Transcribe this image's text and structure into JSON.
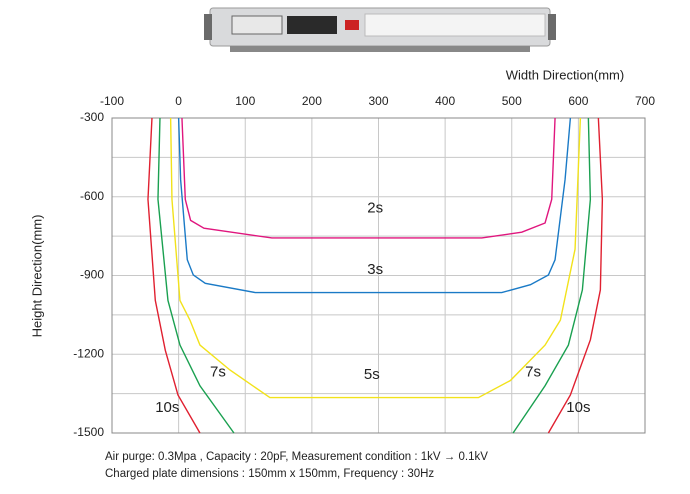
{
  "chart_data": {
    "type": "line",
    "x_label": "Width Direction(mm)",
    "y_label": "Height Direction(mm)",
    "xlim": [
      -100,
      700
    ],
    "xticks": [
      -100,
      0,
      100,
      200,
      300,
      400,
      500,
      600,
      700
    ],
    "ylim": [
      -300,
      -1500
    ],
    "yticks": [
      -300,
      -600,
      -900,
      -1200,
      -1500
    ],
    "yminor_ticks": [
      -450,
      -750,
      -1050,
      -1350
    ],
    "grid": true,
    "series": [
      {
        "name": "2s",
        "color": "#e0167e",
        "x": [
          5,
          10,
          18,
          38,
          140,
          455,
          515,
          550,
          560,
          565
        ],
        "values": [
          -300,
          -610,
          -690,
          -720,
          -757,
          -757,
          -735,
          -700,
          -610,
          -300
        ]
      },
      {
        "name": "3s",
        "color": "#1a7ac6",
        "x": [
          0,
          3,
          13,
          22,
          40,
          115,
          485,
          528,
          555,
          565,
          580,
          588
        ],
        "values": [
          -300,
          -535,
          -840,
          -898,
          -930,
          -965,
          -965,
          -935,
          -898,
          -840,
          -535,
          -300
        ]
      },
      {
        "name": "5s",
        "color": "#f2e21a",
        "x": [
          -12,
          -10,
          2,
          17,
          32,
          77,
          137,
          450,
          498,
          550,
          573,
          595,
          603
        ],
        "values": [
          -300,
          -610,
          -995,
          -1070,
          -1165,
          -1260,
          -1365,
          -1365,
          -1300,
          -1165,
          -1070,
          -800,
          -300
        ]
      },
      {
        "name": "7s",
        "color": "#1aa050",
        "x": [
          -28,
          -31,
          -16,
          2,
          32,
          83,
          null,
          502,
          550,
          585,
          606,
          618,
          615
        ],
        "values": [
          -300,
          -610,
          -995,
          -1165,
          -1320,
          -1500,
          null,
          -1500,
          -1320,
          -1165,
          -955,
          -610,
          -300
        ]
      },
      {
        "name": "10s",
        "color": "#e02030",
        "x": [
          -40,
          -46,
          -35,
          -20,
          -1,
          32,
          null,
          555,
          588,
          618,
          633,
          636,
          630
        ],
        "values": [
          -300,
          -610,
          -995,
          -1185,
          -1355,
          -1500,
          null,
          -1500,
          -1355,
          -1145,
          -955,
          -610,
          -300
        ]
      }
    ],
    "annotations": [
      {
        "text": "2s",
        "x": 295,
        "y": -645
      },
      {
        "text": "3s",
        "x": 295,
        "y": -880
      },
      {
        "text": "5s",
        "x": 290,
        "y": -1280
      },
      {
        "text": "7s",
        "x": 59,
        "y": -1270
      },
      {
        "text": "7s",
        "x": 532,
        "y": -1270
      },
      {
        "text": "10s",
        "x": -17,
        "y": -1405
      },
      {
        "text": "10s",
        "x": 600,
        "y": -1405
      }
    ],
    "notes": [
      "Air purge: 0.3Mpa , Capacity : 20pF, Measurement condition : 1kV → 0.1kV",
      "Charged plate dimensions : 150mm x 150mm, Frequency : 30Hz"
    ]
  }
}
